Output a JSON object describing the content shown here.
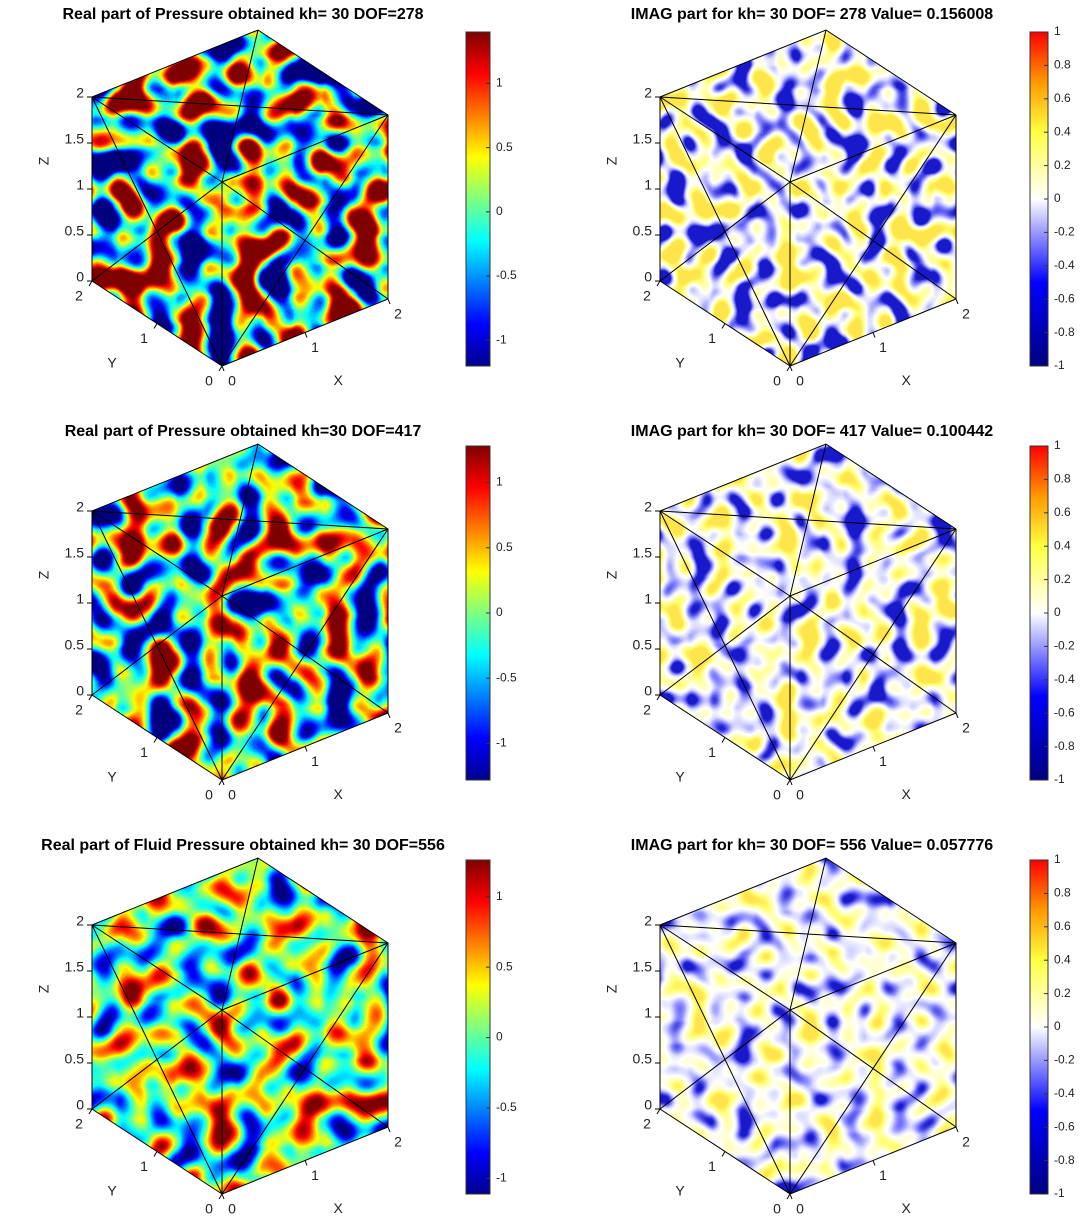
{
  "chart_data": [
    {
      "type": "surface3d",
      "title": "Real part of Pressure obtained kh= 30  DOF=278",
      "colormap": "jet",
      "xlabel": "X",
      "ylabel": "Y",
      "zlabel": "Z",
      "xlim": [
        0,
        2
      ],
      "ylim": [
        0,
        2
      ],
      "zlim": [
        0,
        2
      ],
      "xticks": [
        0,
        1,
        2
      ],
      "yticks": [
        0,
        1,
        2
      ],
      "zticks": [
        0,
        0.5,
        1,
        1.5,
        2
      ],
      "clim": [
        -1.2,
        1.4
      ],
      "cticks": [
        -1,
        -0.5,
        0,
        0.5,
        1
      ]
    },
    {
      "type": "surface3d",
      "title": "IMAG part for kh= 30  DOF= 278  Value= 0.156008",
      "colormap": "blue-white-red",
      "xlabel": "X",
      "ylabel": "Y",
      "zlabel": "Z",
      "xlim": [
        0,
        2
      ],
      "ylim": [
        0,
        2
      ],
      "zlim": [
        0,
        2
      ],
      "xticks": [
        0,
        1,
        2
      ],
      "yticks": [
        0,
        1,
        2
      ],
      "zticks": [
        0,
        0.5,
        1,
        1.5,
        2
      ],
      "clim": [
        -1,
        1
      ],
      "cticks": [
        -1,
        -0.8,
        -0.6,
        -0.4,
        -0.2,
        0,
        0.2,
        0.4,
        0.6,
        0.8,
        1
      ]
    },
    {
      "type": "surface3d",
      "title": "Real part of Pressure obtained kh=30  DOF=417",
      "colormap": "jet",
      "xlabel": "X",
      "ylabel": "Y",
      "zlabel": "Z",
      "xlim": [
        0,
        2
      ],
      "ylim": [
        0,
        2
      ],
      "zlim": [
        0,
        2
      ],
      "xticks": [
        0,
        1,
        2
      ],
      "yticks": [
        0,
        1,
        2
      ],
      "zticks": [
        0,
        0.5,
        1,
        1.5,
        2
      ],
      "clim": [
        -1.28,
        1.28
      ],
      "cticks": [
        -1,
        -0.5,
        0,
        0.5,
        1
      ]
    },
    {
      "type": "surface3d",
      "title": "IMAG part for kh= 30  DOF= 417  Value= 0.100442",
      "colormap": "blue-white-red",
      "xlabel": "X",
      "ylabel": "Y",
      "zlabel": "Z",
      "xlim": [
        0,
        2
      ],
      "ylim": [
        0,
        2
      ],
      "zlim": [
        0,
        2
      ],
      "xticks": [
        0,
        1,
        2
      ],
      "yticks": [
        0,
        1,
        2
      ],
      "zticks": [
        0,
        0.5,
        1,
        1.5,
        2
      ],
      "clim": [
        -1,
        1
      ],
      "cticks": [
        -1,
        -0.8,
        -0.6,
        -0.4,
        -0.2,
        0,
        0.2,
        0.4,
        0.6,
        0.8,
        1
      ]
    },
    {
      "type": "surface3d",
      "title": "Real part of Fluid Pressure obtained kh= 30  DOF=556",
      "colormap": "jet",
      "xlabel": "X",
      "ylabel": "Y",
      "zlabel": "Z",
      "xlim": [
        0,
        2
      ],
      "ylim": [
        0,
        2
      ],
      "zlim": [
        0,
        2
      ],
      "xticks": [
        0,
        1,
        2
      ],
      "yticks": [
        0,
        1,
        2
      ],
      "zticks": [
        0,
        0.5,
        1,
        1.5,
        2
      ],
      "clim": [
        -1.11,
        1.26
      ],
      "cticks": [
        -1,
        -0.5,
        0,
        0.5,
        1
      ]
    },
    {
      "type": "surface3d",
      "title": "IMAG part for kh= 30  DOF= 556  Value= 0.057776",
      "colormap": "blue-white-red",
      "xlabel": "X",
      "ylabel": "Y",
      "zlabel": "Z",
      "xlim": [
        0,
        2
      ],
      "ylim": [
        0,
        2
      ],
      "zlim": [
        0,
        2
      ],
      "xticks": [
        0,
        1,
        2
      ],
      "yticks": [
        0,
        1,
        2
      ],
      "zticks": [
        0,
        0.5,
        1,
        1.5,
        2
      ],
      "clim": [
        -1,
        1
      ],
      "cticks": [
        -1,
        -0.8,
        -0.6,
        -0.4,
        -0.2,
        0,
        0.2,
        0.4,
        0.6,
        0.8,
        1
      ]
    }
  ]
}
